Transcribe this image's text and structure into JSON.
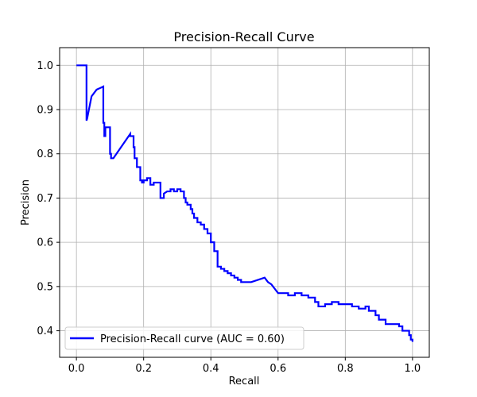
{
  "chart_data": {
    "type": "line",
    "title": "Precision-Recall Curve",
    "xlabel": "Recall",
    "ylabel": "Precision",
    "xlim": [
      -0.05,
      1.05
    ],
    "ylim": [
      0.34,
      1.04
    ],
    "x_ticks": [
      0.0,
      0.2,
      0.4,
      0.6,
      0.8,
      1.0
    ],
    "x_tick_labels": [
      "0.0",
      "0.2",
      "0.4",
      "0.6",
      "0.8",
      "1.0"
    ],
    "y_ticks": [
      0.4,
      0.5,
      0.6,
      0.7,
      0.8,
      0.9,
      1.0
    ],
    "y_tick_labels": [
      "0.4",
      "0.5",
      "0.6",
      "0.7",
      "0.8",
      "0.9",
      "1.0"
    ],
    "grid": true,
    "legend_position": "lower-left",
    "series": [
      {
        "name": "Precision-Recall curve (AUC = 0.60)",
        "color": "#0000ff",
        "x": [
          0.0,
          0.03,
          0.03,
          0.032,
          0.045,
          0.06,
          0.08,
          0.08,
          0.083,
          0.083,
          0.086,
          0.086,
          0.1,
          0.1,
          0.103,
          0.103,
          0.11,
          0.16,
          0.16,
          0.163,
          0.17,
          0.17,
          0.173,
          0.173,
          0.18,
          0.18,
          0.19,
          0.19,
          0.195,
          0.195,
          0.2,
          0.2,
          0.21,
          0.21,
          0.22,
          0.22,
          0.23,
          0.23,
          0.25,
          0.25,
          0.26,
          0.26,
          0.27,
          0.28,
          0.28,
          0.29,
          0.29,
          0.3,
          0.3,
          0.31,
          0.31,
          0.32,
          0.32,
          0.325,
          0.325,
          0.33,
          0.33,
          0.34,
          0.34,
          0.345,
          0.345,
          0.35,
          0.35,
          0.36,
          0.36,
          0.37,
          0.37,
          0.38,
          0.38,
          0.39,
          0.39,
          0.4,
          0.4,
          0.41,
          0.41,
          0.42,
          0.42,
          0.43,
          0.43,
          0.44,
          0.44,
          0.45,
          0.45,
          0.46,
          0.46,
          0.47,
          0.47,
          0.48,
          0.48,
          0.49,
          0.49,
          0.52,
          0.56,
          0.56,
          0.57,
          0.57,
          0.58,
          0.58,
          0.59,
          0.59,
          0.6,
          0.6,
          0.63,
          0.63,
          0.65,
          0.65,
          0.67,
          0.67,
          0.69,
          0.69,
          0.71,
          0.71,
          0.72,
          0.72,
          0.74,
          0.74,
          0.76,
          0.76,
          0.78,
          0.78,
          0.82,
          0.82,
          0.84,
          0.84,
          0.86,
          0.86,
          0.87,
          0.87,
          0.89,
          0.89,
          0.9,
          0.9,
          0.92,
          0.92,
          0.96,
          0.96,
          0.97,
          0.97,
          0.99,
          0.99,
          0.995,
          0.995,
          1.0,
          1.0
        ],
        "y": [
          1.0,
          1.0,
          0.875,
          0.88,
          0.93,
          0.945,
          0.952,
          0.87,
          0.87,
          0.84,
          0.84,
          0.86,
          0.86,
          0.8,
          0.8,
          0.79,
          0.79,
          0.845,
          0.84,
          0.84,
          0.84,
          0.815,
          0.815,
          0.79,
          0.79,
          0.77,
          0.77,
          0.74,
          0.74,
          0.735,
          0.735,
          0.74,
          0.74,
          0.745,
          0.745,
          0.73,
          0.73,
          0.735,
          0.735,
          0.7,
          0.7,
          0.71,
          0.715,
          0.715,
          0.72,
          0.72,
          0.715,
          0.715,
          0.72,
          0.72,
          0.715,
          0.715,
          0.7,
          0.7,
          0.69,
          0.69,
          0.685,
          0.685,
          0.675,
          0.675,
          0.665,
          0.665,
          0.655,
          0.655,
          0.645,
          0.645,
          0.64,
          0.64,
          0.63,
          0.63,
          0.62,
          0.62,
          0.6,
          0.6,
          0.58,
          0.58,
          0.545,
          0.545,
          0.54,
          0.54,
          0.535,
          0.535,
          0.53,
          0.53,
          0.525,
          0.525,
          0.52,
          0.52,
          0.515,
          0.515,
          0.51,
          0.51,
          0.52,
          0.52,
          0.51,
          0.51,
          0.505,
          0.505,
          0.495,
          0.495,
          0.485,
          0.485,
          0.485,
          0.48,
          0.48,
          0.485,
          0.485,
          0.48,
          0.48,
          0.475,
          0.475,
          0.465,
          0.465,
          0.455,
          0.455,
          0.46,
          0.46,
          0.465,
          0.465,
          0.46,
          0.46,
          0.455,
          0.455,
          0.45,
          0.45,
          0.455,
          0.455,
          0.445,
          0.445,
          0.435,
          0.435,
          0.425,
          0.425,
          0.415,
          0.415,
          0.41,
          0.41,
          0.4,
          0.4,
          0.39,
          0.39,
          0.38,
          0.38,
          0.375
        ]
      }
    ]
  }
}
